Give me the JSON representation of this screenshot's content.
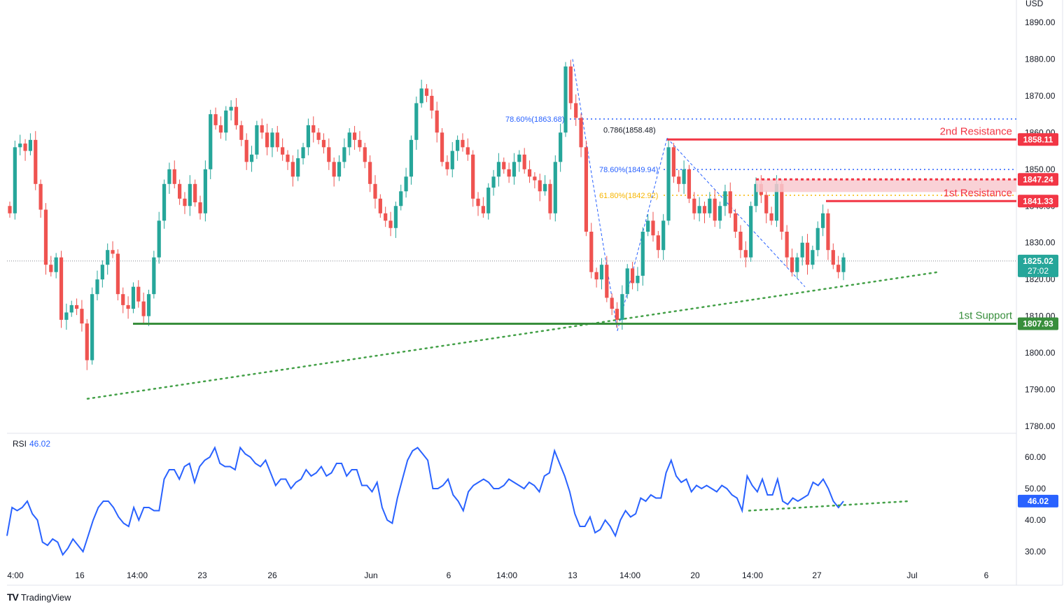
{
  "chart_data": [
    {
      "type": "candlestick",
      "currency": "USD",
      "ylim": [
        1777,
        1897
      ],
      "y_ticks": [
        "1890.00",
        "1880.00",
        "1870.00",
        "1860.00",
        "1850.00",
        "1840.00",
        "1830.00",
        "1820.00",
        "1810.00",
        "1800.00",
        "1790.00",
        "1780.00"
      ],
      "x_ticks": [
        "4:00",
        "16",
        "14:00",
        "23",
        "26",
        "Jun",
        "6",
        "14:00",
        "13",
        "14:00",
        "20",
        "14:00",
        "27",
        "Jul",
        "6"
      ],
      "close": [
        1838,
        1856,
        1857,
        1855,
        1858,
        1846,
        1839,
        1824,
        1822,
        1826,
        1809,
        1811,
        1813,
        1812,
        1808,
        1798,
        1816,
        1820,
        1824,
        1828,
        1827,
        1816,
        1813,
        1812,
        1818,
        1814,
        1810,
        1816,
        1826,
        1836,
        1846,
        1850,
        1846,
        1842,
        1840,
        1846,
        1841,
        1838,
        1850,
        1865,
        1862,
        1860,
        1866,
        1867,
        1862,
        1858,
        1852,
        1854,
        1862,
        1860,
        1856,
        1860,
        1856,
        1854,
        1852,
        1848,
        1853,
        1856,
        1862,
        1860,
        1858,
        1856,
        1852,
        1848,
        1852,
        1856,
        1860,
        1858,
        1856,
        1852,
        1846,
        1842,
        1838,
        1836,
        1834,
        1840,
        1844,
        1848,
        1858,
        1868,
        1872,
        1870,
        1866,
        1860,
        1852,
        1850,
        1855,
        1858,
        1856,
        1854,
        1842,
        1840,
        1838,
        1845,
        1848,
        1852,
        1850,
        1848,
        1852,
        1854,
        1850,
        1848,
        1847,
        1844,
        1846,
        1838,
        1852,
        1860,
        1878,
        1868,
        1864,
        1856,
        1833,
        1822,
        1820,
        1824,
        1815,
        1812,
        1809,
        1816,
        1823,
        1819,
        1821,
        1833,
        1836,
        1832,
        1828,
        1836,
        1856,
        1848,
        1846,
        1850,
        1842,
        1838,
        1840,
        1838,
        1842,
        1836,
        1840,
        1844,
        1838,
        1833,
        1828,
        1826,
        1840,
        1846,
        1843,
        1838,
        1836,
        1846,
        1833,
        1826,
        1822,
        1826,
        1830,
        1824,
        1828,
        1834,
        1838,
        1828,
        1824,
        1822,
        1826
      ],
      "last_price": "1825.02",
      "countdown": "27:02",
      "fibonacci": [
        {
          "label": "78.60%(1863.68)",
          "price": 1863.68
        },
        {
          "label": "0.786(1858.48)",
          "price": 1858.48
        },
        {
          "label": "78.60%(1849.94)",
          "price": 1849.94
        },
        {
          "label": "61.80%(1842.92)",
          "price": 1842.92
        }
      ],
      "levels": [
        {
          "name": "2nd Resistance",
          "price": 1858.11,
          "tag": "1858.11",
          "color": "#f23645"
        },
        {
          "name": "",
          "price": 1847.24,
          "tag": "1847.24",
          "color": "#f23645"
        },
        {
          "name": "1st Resistance",
          "price": 1841.33,
          "tag": "1841.33",
          "color": "#f23645"
        },
        {
          "name": "1st Support",
          "price": 1807.93,
          "tag": "1807.93",
          "color": "#388e3c"
        }
      ],
      "trendline": {
        "from_price": 1787.5,
        "to_price": 1822,
        "style": "dotted",
        "color": "#43a047"
      },
      "colors": {
        "up": "#26a69a",
        "down": "#ef5350",
        "fib": "#2962ff",
        "fib_618": "#f7b500"
      }
    },
    {
      "type": "line",
      "name": "RSI",
      "value_label": "46.02",
      "ylim": [
        25,
        68
      ],
      "y_ticks": [
        "60.00",
        "50.00",
        "40.00",
        "30.00"
      ],
      "values": [
        35,
        44,
        43,
        44,
        46,
        42,
        40,
        33,
        32,
        34,
        33,
        29,
        31,
        34,
        32,
        30,
        35,
        40,
        44,
        46,
        46,
        44,
        41,
        39,
        38,
        44,
        40,
        44,
        44,
        43,
        43,
        53,
        56,
        56,
        53,
        57,
        58,
        52,
        57,
        59,
        60,
        63,
        58,
        57,
        57,
        56,
        63,
        61,
        60,
        58,
        57,
        59,
        55,
        51,
        53,
        53,
        50,
        52,
        53,
        56,
        54,
        55,
        57,
        54,
        55,
        58,
        58,
        54,
        56,
        56,
        51,
        51,
        49,
        52,
        44,
        40,
        39,
        47,
        53,
        59,
        62,
        63,
        61,
        59,
        50,
        50,
        51,
        53,
        48,
        46,
        43,
        49,
        51,
        52,
        53,
        52,
        50,
        50,
        51,
        53,
        52,
        51,
        50,
        52,
        51,
        49,
        54,
        55,
        62,
        58,
        54,
        49,
        42,
        38,
        38,
        41,
        36,
        37,
        40,
        38,
        35,
        40,
        43,
        41,
        42,
        47,
        46,
        48,
        47,
        47,
        55,
        59,
        54,
        52,
        53,
        49,
        51,
        50,
        51,
        50,
        49,
        51,
        50,
        48,
        47,
        43,
        54,
        51,
        49,
        53,
        48,
        48,
        53,
        46,
        45,
        47,
        46,
        47,
        48,
        52,
        51,
        53,
        50,
        46,
        44,
        46
      ],
      "support_line": {
        "from": 43,
        "to": 46,
        "color": "#43a047"
      }
    }
  ],
  "branding": {
    "logo_mark": "TV",
    "logo_text": "TradingView"
  }
}
